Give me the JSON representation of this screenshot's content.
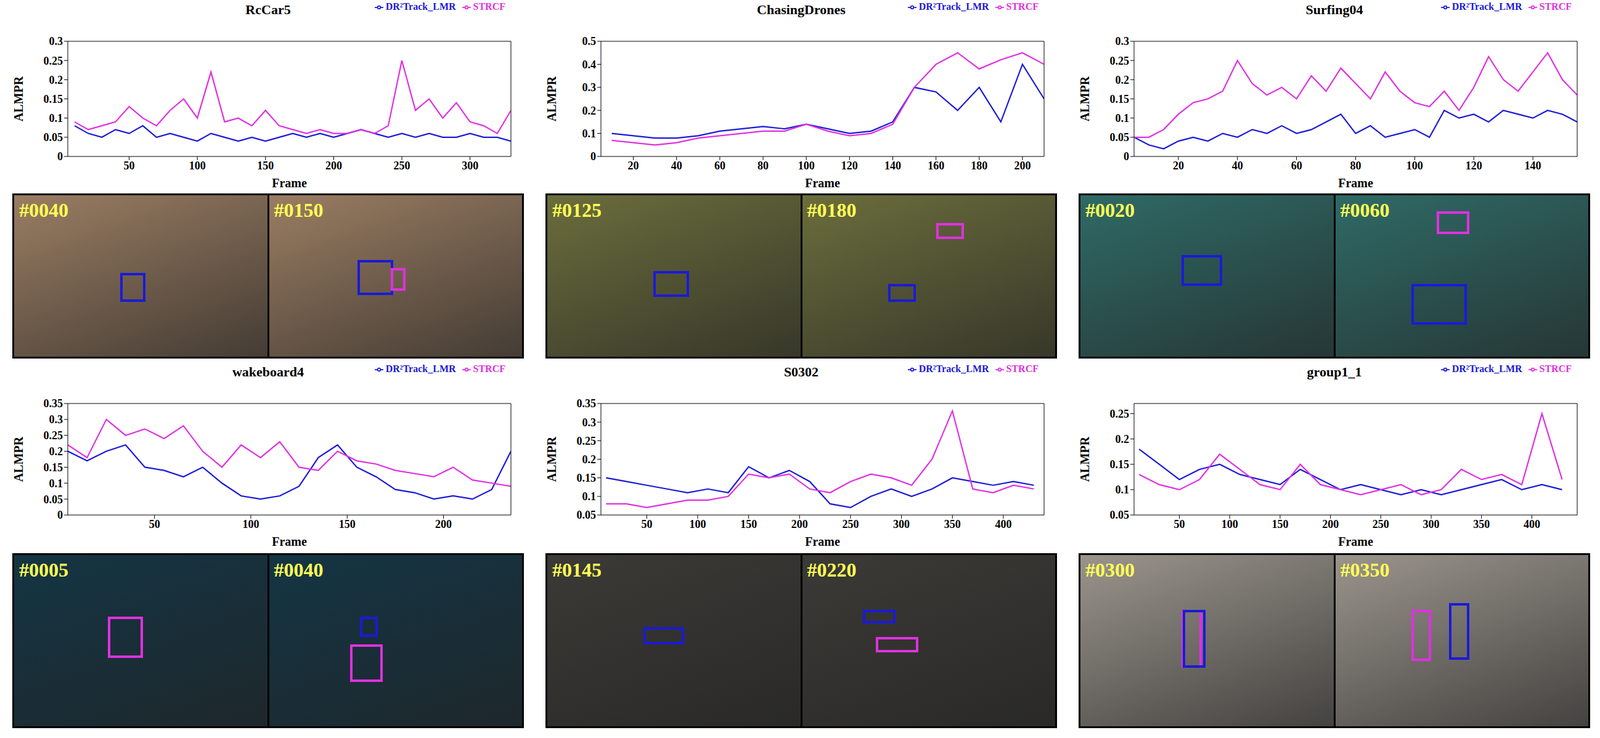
{
  "chart_data": [
    {
      "type": "line",
      "title": "RcCar5",
      "x_label": "Frame",
      "y_label": "ALMPR",
      "legend": "upper right",
      "frames": [
        "#0040",
        "#0150"
      ],
      "x": [
        10,
        20,
        30,
        40,
        50,
        60,
        70,
        80,
        90,
        100,
        110,
        120,
        130,
        140,
        150,
        160,
        170,
        180,
        190,
        200,
        210,
        220,
        230,
        240,
        250,
        260,
        270,
        280,
        290,
        300,
        310,
        320,
        330
      ],
      "xlim": [
        5,
        330
      ],
      "xticks": [
        50,
        100,
        150,
        200,
        250,
        300
      ],
      "ylim": [
        0,
        0.3
      ],
      "yticks": [
        0,
        0.05,
        0.1,
        0.15,
        0.2,
        0.25,
        0.3
      ],
      "series": [
        {
          "name": "DR²Track_LMR",
          "color": "#1a1ad8",
          "values": [
            0.08,
            0.06,
            0.05,
            0.07,
            0.06,
            0.08,
            0.05,
            0.06,
            0.05,
            0.04,
            0.06,
            0.05,
            0.04,
            0.05,
            0.04,
            0.05,
            0.06,
            0.05,
            0.06,
            0.05,
            0.06,
            0.07,
            0.06,
            0.05,
            0.06,
            0.05,
            0.06,
            0.05,
            0.05,
            0.06,
            0.05,
            0.05,
            0.04
          ]
        },
        {
          "name": "STRCF",
          "color": "#e030e0",
          "values": [
            0.09,
            0.07,
            0.08,
            0.09,
            0.13,
            0.1,
            0.08,
            0.12,
            0.15,
            0.1,
            0.22,
            0.09,
            0.1,
            0.08,
            0.12,
            0.08,
            0.07,
            0.06,
            0.07,
            0.06,
            0.06,
            0.07,
            0.06,
            0.08,
            0.25,
            0.12,
            0.15,
            0.1,
            0.14,
            0.09,
            0.08,
            0.06,
            0.12
          ]
        }
      ]
    },
    {
      "type": "line",
      "title": "ChasingDrones",
      "x_label": "Frame",
      "y_label": "ALMPR",
      "legend": "upper right",
      "frames": [
        "#0125",
        "#0180"
      ],
      "x": [
        10,
        20,
        30,
        40,
        50,
        60,
        70,
        80,
        90,
        100,
        110,
        120,
        130,
        140,
        150,
        160,
        170,
        180,
        190,
        200,
        210
      ],
      "xlim": [
        5,
        210
      ],
      "xticks": [
        20,
        40,
        60,
        80,
        100,
        120,
        140,
        160,
        180,
        200
      ],
      "ylim": [
        0,
        0.5
      ],
      "yticks": [
        0,
        0.1,
        0.2,
        0.3,
        0.4,
        0.5
      ],
      "series": [
        {
          "name": "DR²Track_LMR",
          "color": "#1a1ad8",
          "values": [
            0.1,
            0.09,
            0.08,
            0.08,
            0.09,
            0.11,
            0.12,
            0.13,
            0.12,
            0.14,
            0.12,
            0.1,
            0.11,
            0.15,
            0.3,
            0.28,
            0.2,
            0.3,
            0.15,
            0.4,
            0.25
          ]
        },
        {
          "name": "STRCF",
          "color": "#e030e0",
          "values": [
            0.07,
            0.06,
            0.05,
            0.06,
            0.08,
            0.09,
            0.1,
            0.11,
            0.11,
            0.14,
            0.11,
            0.09,
            0.1,
            0.14,
            0.3,
            0.4,
            0.45,
            0.38,
            0.42,
            0.45,
            0.4
          ]
        }
      ]
    },
    {
      "type": "line",
      "title": "Surfing04",
      "x_label": "Frame",
      "y_label": "ALMPR",
      "legend": "upper right",
      "frames": [
        "#0020",
        "#0060"
      ],
      "x": [
        5,
        10,
        15,
        20,
        25,
        30,
        35,
        40,
        45,
        50,
        55,
        60,
        65,
        70,
        75,
        80,
        85,
        90,
        95,
        100,
        105,
        110,
        115,
        120,
        125,
        130,
        135,
        140,
        145,
        150,
        155
      ],
      "xlim": [
        5,
        155
      ],
      "xticks": [
        20,
        40,
        60,
        80,
        100,
        120,
        140
      ],
      "ylim": [
        0,
        0.3
      ],
      "yticks": [
        0,
        0.05,
        0.1,
        0.15,
        0.2,
        0.25,
        0.3
      ],
      "series": [
        {
          "name": "DR²Track_LMR",
          "color": "#1a1ad8",
          "values": [
            0.05,
            0.03,
            0.02,
            0.04,
            0.05,
            0.04,
            0.06,
            0.05,
            0.07,
            0.06,
            0.08,
            0.06,
            0.07,
            0.09,
            0.11,
            0.06,
            0.08,
            0.05,
            0.06,
            0.07,
            0.05,
            0.12,
            0.1,
            0.11,
            0.09,
            0.12,
            0.11,
            0.1,
            0.12,
            0.11,
            0.09
          ]
        },
        {
          "name": "STRCF",
          "color": "#e030e0",
          "values": [
            0.05,
            0.05,
            0.07,
            0.11,
            0.14,
            0.15,
            0.17,
            0.25,
            0.19,
            0.16,
            0.18,
            0.15,
            0.21,
            0.17,
            0.23,
            0.19,
            0.15,
            0.22,
            0.17,
            0.14,
            0.13,
            0.17,
            0.12,
            0.18,
            0.26,
            0.2,
            0.17,
            0.22,
            0.27,
            0.2,
            0.16
          ]
        }
      ]
    },
    {
      "type": "line",
      "title": "wakeboard4",
      "x_label": "Frame",
      "y_label": "ALMPR",
      "legend": "upper right",
      "frames": [
        "#0005",
        "#0040"
      ],
      "x": [
        5,
        15,
        25,
        35,
        45,
        55,
        65,
        75,
        85,
        95,
        105,
        115,
        125,
        135,
        145,
        155,
        165,
        175,
        185,
        195,
        205,
        215,
        225,
        235
      ],
      "xlim": [
        5,
        235
      ],
      "xticks": [
        50,
        100,
        150,
        200
      ],
      "ylim": [
        0,
        0.35
      ],
      "yticks": [
        0,
        0.05,
        0.1,
        0.15,
        0.2,
        0.25,
        0.3,
        0.35
      ],
      "series": [
        {
          "name": "DR²Track_LMR",
          "color": "#1a1ad8",
          "values": [
            0.2,
            0.17,
            0.2,
            0.22,
            0.15,
            0.14,
            0.12,
            0.15,
            0.1,
            0.06,
            0.05,
            0.06,
            0.09,
            0.18,
            0.22,
            0.15,
            0.12,
            0.08,
            0.07,
            0.05,
            0.06,
            0.05,
            0.08,
            0.2
          ]
        },
        {
          "name": "STRCF",
          "color": "#e030e0",
          "values": [
            0.22,
            0.18,
            0.3,
            0.25,
            0.27,
            0.24,
            0.28,
            0.2,
            0.15,
            0.22,
            0.18,
            0.23,
            0.15,
            0.14,
            0.2,
            0.17,
            0.16,
            0.14,
            0.13,
            0.12,
            0.15,
            0.11,
            0.1,
            0.09
          ]
        }
      ]
    },
    {
      "type": "line",
      "title": "S0302",
      "x_label": "Frame",
      "y_label": "ALMPR",
      "legend": "upper right",
      "frames": [
        "#0145",
        "#0220"
      ],
      "x": [
        10,
        30,
        50,
        70,
        90,
        110,
        130,
        150,
        170,
        190,
        210,
        230,
        250,
        270,
        290,
        310,
        330,
        350,
        370,
        390,
        410,
        430
      ],
      "xlim": [
        5,
        440
      ],
      "xticks": [
        50,
        100,
        150,
        200,
        250,
        300,
        350,
        400
      ],
      "ylim": [
        0.05,
        0.35
      ],
      "yticks": [
        0.05,
        0.1,
        0.15,
        0.2,
        0.25,
        0.3,
        0.35
      ],
      "series": [
        {
          "name": "DR²Track_LMR",
          "color": "#1a1ad8",
          "values": [
            0.15,
            0.14,
            0.13,
            0.12,
            0.11,
            0.12,
            0.11,
            0.18,
            0.15,
            0.17,
            0.14,
            0.08,
            0.07,
            0.1,
            0.12,
            0.1,
            0.12,
            0.15,
            0.14,
            0.13,
            0.14,
            0.13
          ]
        },
        {
          "name": "STRCF",
          "color": "#e030e0",
          "values": [
            0.08,
            0.08,
            0.07,
            0.08,
            0.09,
            0.09,
            0.1,
            0.16,
            0.15,
            0.16,
            0.12,
            0.11,
            0.14,
            0.16,
            0.15,
            0.13,
            0.2,
            0.33,
            0.12,
            0.11,
            0.13,
            0.12
          ]
        }
      ]
    },
    {
      "type": "line",
      "title": "group1_1",
      "x_label": "Frame",
      "y_label": "ALMPR",
      "legend": "upper right",
      "frames": [
        "#0300",
        "#0350"
      ],
      "x": [
        10,
        30,
        50,
        70,
        90,
        110,
        130,
        150,
        170,
        190,
        210,
        230,
        250,
        270,
        290,
        310,
        330,
        350,
        370,
        390,
        410,
        430
      ],
      "xlim": [
        5,
        445
      ],
      "xticks": [
        50,
        100,
        150,
        200,
        250,
        300,
        350,
        400
      ],
      "ylim": [
        0.05,
        0.27
      ],
      "yticks": [
        0.05,
        0.1,
        0.15,
        0.2,
        0.25
      ],
      "series": [
        {
          "name": "DR²Track_LMR",
          "color": "#1a1ad8",
          "values": [
            0.18,
            0.15,
            0.12,
            0.14,
            0.15,
            0.13,
            0.12,
            0.11,
            0.14,
            0.12,
            0.1,
            0.11,
            0.1,
            0.09,
            0.1,
            0.09,
            0.1,
            0.11,
            0.12,
            0.1,
            0.11,
            0.1
          ]
        },
        {
          "name": "STRCF",
          "color": "#e030e0",
          "values": [
            0.13,
            0.11,
            0.1,
            0.12,
            0.17,
            0.14,
            0.11,
            0.1,
            0.15,
            0.11,
            0.1,
            0.09,
            0.1,
            0.11,
            0.09,
            0.1,
            0.14,
            0.12,
            0.13,
            0.11,
            0.25,
            0.12
          ]
        }
      ]
    }
  ]
}
